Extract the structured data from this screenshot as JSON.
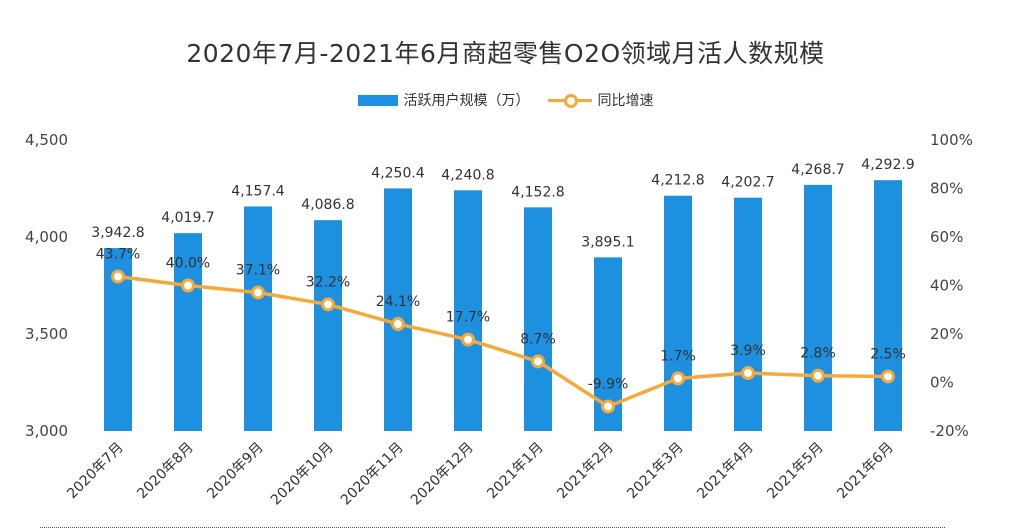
{
  "chart_data": {
    "type": "bar",
    "title": "2020年7月-2021年6月商超零售O2O领域月活人数规模",
    "categories": [
      "2020年7月",
      "2020年8月",
      "2020年9月",
      "2020年10月",
      "2020年11月",
      "2020年12月",
      "2021年1月",
      "2021年2月",
      "2021年3月",
      "2021年4月",
      "2021年5月",
      "2021年6月"
    ],
    "series": [
      {
        "name": "活跃用户规模（万）",
        "type": "bar",
        "axis": "left",
        "values": [
          3942.8,
          4019.7,
          4157.4,
          4086.8,
          4250.4,
          4240.8,
          4152.8,
          3895.1,
          4212.8,
          4202.7,
          4268.7,
          4292.9
        ],
        "labels": [
          "3,942.8",
          "4,019.7",
          "4,157.4",
          "4,086.8",
          "4,250.4",
          "4,240.8",
          "4,152.8",
          "3,895.1",
          "4,212.8",
          "4,202.7",
          "4,268.7",
          "4,292.9"
        ],
        "color": "#1e90e0"
      },
      {
        "name": "同比增速",
        "type": "line",
        "axis": "right",
        "values": [
          43.7,
          40.0,
          37.1,
          32.2,
          24.1,
          17.7,
          8.7,
          -9.9,
          1.7,
          3.9,
          2.8,
          2.5
        ],
        "labels": [
          "43.7%",
          "40.0%",
          "37.1%",
          "32.2%",
          "24.1%",
          "17.7%",
          "8.7%",
          "-9.9%",
          "1.7%",
          "3.9%",
          "2.8%",
          "2.5%"
        ],
        "color": "#f5a93a"
      }
    ],
    "y_left": {
      "ylim": [
        3000,
        4500
      ],
      "ticks": [
        3000,
        3500,
        4000,
        4500
      ],
      "tick_labels": [
        "3,000",
        "3,500",
        "4,000",
        "4,500"
      ]
    },
    "y_right": {
      "ylim": [
        -20,
        100
      ],
      "ticks": [
        -20,
        0,
        20,
        40,
        60,
        80,
        100
      ],
      "tick_labels": [
        "-20%",
        "0%",
        "20%",
        "40%",
        "60%",
        "80%",
        "100%"
      ]
    },
    "grid": false,
    "legend_position": "top-center"
  }
}
